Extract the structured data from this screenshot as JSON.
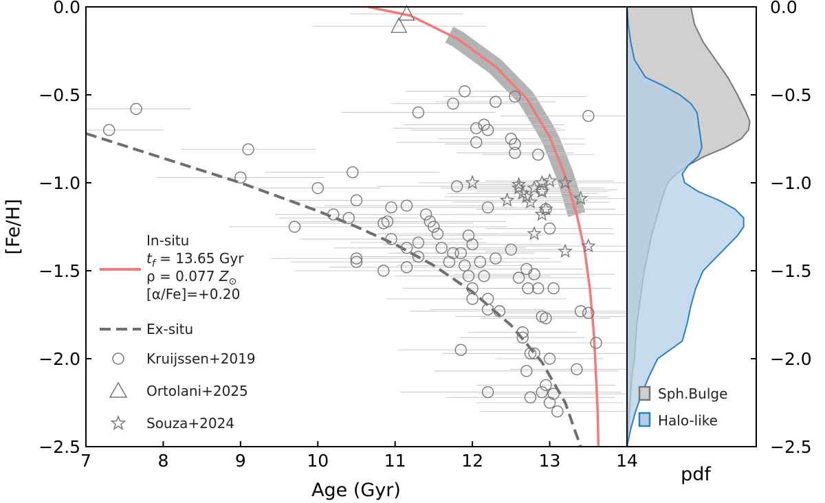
{
  "chart_data": [
    {
      "type": "scatter",
      "xlabel": "Age (Gyr)",
      "ylabel": "[Fe/H]",
      "xlim": [
        7,
        14
      ],
      "ylim": [
        -2.5,
        0.0
      ],
      "xticks": [
        "7",
        "8",
        "9",
        "10",
        "11",
        "12",
        "13",
        "14"
      ],
      "yticks": [
        "0.0",
        "−0.5",
        "−1.0",
        "−1.5",
        "−2.0",
        "−2.5"
      ],
      "models": {
        "in_situ": {
          "label_lines": [
            "In-situ",
            "t_f = 13.65 Gyr",
            "ρ = 0.077 Z⊙",
            "[α/Fe]=+0.20"
          ],
          "label_title": "In-situ",
          "label_tf_symbol": "t",
          "label_tf_sub": "f",
          "label_tf_value": " = 13.65 Gyr",
          "label_rho_prefix": "ρ = 0.077 ",
          "label_rho_symbol": "Z",
          "label_rho_sub": "⊙",
          "label_alpha": "[α/Fe]=+0.20",
          "color": "#f47a7a",
          "t_f": 13.65,
          "curve": [
            [
              10.65,
              0.0
            ],
            [
              11.2,
              -0.05
            ],
            [
              11.8,
              -0.18
            ],
            [
              12.3,
              -0.34
            ],
            [
              12.7,
              -0.52
            ],
            [
              13.0,
              -0.74
            ],
            [
              13.2,
              -0.96
            ],
            [
              13.35,
              -1.18
            ],
            [
              13.45,
              -1.38
            ],
            [
              13.52,
              -1.6
            ],
            [
              13.57,
              -1.85
            ],
            [
              13.6,
              -2.1
            ],
            [
              13.62,
              -2.3
            ],
            [
              13.63,
              -2.5
            ]
          ],
          "band_x_range": [
            11.7,
            13.35
          ],
          "band_color": "#b3b3b3"
        },
        "ex_situ": {
          "label": "Ex-situ",
          "color": "#6e6e6e",
          "curve": [
            [
              7.0,
              -0.72
            ],
            [
              7.5,
              -0.79
            ],
            [
              8.0,
              -0.86
            ],
            [
              8.5,
              -0.93
            ],
            [
              9.0,
              -1.0
            ],
            [
              9.5,
              -1.08
            ],
            [
              10.0,
              -1.16
            ],
            [
              10.5,
              -1.25
            ],
            [
              11.0,
              -1.35
            ],
            [
              11.5,
              -1.47
            ],
            [
              12.0,
              -1.62
            ],
            [
              12.5,
              -1.81
            ],
            [
              12.9,
              -2.02
            ],
            [
              13.2,
              -2.25
            ],
            [
              13.4,
              -2.5
            ]
          ]
        }
      },
      "series": [
        {
          "name": "Kruijssen+2019",
          "marker": "circle",
          "points": [
            [
              7.3,
              -0.7
            ],
            [
              7.65,
              -0.58
            ],
            [
              9.0,
              -0.97
            ],
            [
              9.1,
              -0.81
            ],
            [
              9.7,
              -1.25
            ],
            [
              10.0,
              -1.03
            ],
            [
              10.2,
              -1.18
            ],
            [
              10.4,
              -1.2
            ],
            [
              10.45,
              -0.94
            ],
            [
              10.5,
              -1.1
            ],
            [
              10.5,
              -1.43
            ],
            [
              10.5,
              -1.45
            ],
            [
              10.85,
              -1.23
            ],
            [
              10.9,
              -1.22
            ],
            [
              10.85,
              -1.5
            ],
            [
              10.95,
              -1.32
            ],
            [
              10.95,
              -1.14
            ],
            [
              11.15,
              -1.48
            ],
            [
              11.15,
              -1.13
            ],
            [
              11.15,
              -1.37
            ],
            [
              11.3,
              -1.34
            ],
            [
              11.3,
              -1.42
            ],
            [
              11.3,
              -0.6
            ],
            [
              11.4,
              -1.18
            ],
            [
              11.45,
              -1.22
            ],
            [
              11.5,
              -1.25
            ],
            [
              11.55,
              -1.29
            ],
            [
              11.6,
              -1.37
            ],
            [
              11.7,
              -1.45
            ],
            [
              11.75,
              -1.4
            ],
            [
              11.75,
              -0.55
            ],
            [
              11.8,
              -1.02
            ],
            [
              11.85,
              -1.4
            ],
            [
              11.85,
              -1.95
            ],
            [
              11.9,
              -0.48
            ],
            [
              11.9,
              -1.47
            ],
            [
              11.95,
              -1.53
            ],
            [
              11.95,
              -1.3
            ],
            [
              12.0,
              -1.66
            ],
            [
              12.0,
              -1.35
            ],
            [
              12.0,
              -1.6
            ],
            [
              12.05,
              -0.69
            ],
            [
              12.05,
              -0.77
            ],
            [
              12.1,
              -1.45
            ],
            [
              12.15,
              -0.67
            ],
            [
              12.15,
              -1.53
            ],
            [
              12.2,
              -0.7
            ],
            [
              12.2,
              -1.14
            ],
            [
              12.2,
              -1.66
            ],
            [
              12.2,
              -1.72
            ],
            [
              12.2,
              -2.19
            ],
            [
              12.3,
              -1.43
            ],
            [
              12.3,
              -0.54
            ],
            [
              12.35,
              -1.73
            ],
            [
              12.5,
              -0.75
            ],
            [
              12.5,
              -1.38
            ],
            [
              12.55,
              -0.83
            ],
            [
              12.55,
              -0.78
            ],
            [
              12.55,
              -0.51
            ],
            [
              12.6,
              -1.54
            ],
            [
              12.65,
              -1.88
            ],
            [
              12.65,
              -1.85
            ],
            [
              12.7,
              -2.07
            ],
            [
              12.7,
              -1.49
            ],
            [
              12.72,
              -1.6
            ],
            [
              12.75,
              -1.97
            ],
            [
              12.75,
              -2.22
            ],
            [
              12.8,
              -1.52
            ],
            [
              12.8,
              -1.97
            ],
            [
              12.85,
              -0.84
            ],
            [
              12.85,
              -1.6
            ],
            [
              12.9,
              -1.04
            ],
            [
              12.9,
              -1.76
            ],
            [
              12.9,
              -2.19
            ],
            [
              12.95,
              -1.15
            ],
            [
              12.95,
              -1.77
            ],
            [
              12.95,
              -2.15
            ],
            [
              13.0,
              -1.26
            ],
            [
              13.0,
              -2.0
            ],
            [
              13.0,
              -2.25
            ],
            [
              13.05,
              -1.6
            ],
            [
              13.05,
              -2.2
            ],
            [
              13.1,
              -2.3
            ],
            [
              13.35,
              -2.06
            ],
            [
              13.4,
              -1.73
            ],
            [
              13.5,
              -1.74
            ],
            [
              13.5,
              -0.62
            ],
            [
              13.6,
              -1.91
            ]
          ]
        },
        {
          "name": "Ortolani+2025",
          "marker": "triangle",
          "points": [
            [
              11.05,
              -0.11
            ],
            [
              11.15,
              -0.04
            ]
          ]
        },
        {
          "name": "Souza+2024",
          "marker": "star",
          "points": [
            [
              12.0,
              -1.0
            ],
            [
              12.45,
              -1.1
            ],
            [
              12.6,
              -1.03
            ],
            [
              12.6,
              -1.01
            ],
            [
              12.65,
              -1.06
            ],
            [
              12.7,
              -1.08
            ],
            [
              12.75,
              -1.11
            ],
            [
              12.8,
              -1.03
            ],
            [
              12.8,
              -1.29
            ],
            [
              12.9,
              -1.05
            ],
            [
              12.9,
              -1.0
            ],
            [
              12.9,
              -1.18
            ],
            [
              12.95,
              -1.15
            ],
            [
              13.0,
              -0.99
            ],
            [
              13.2,
              -1.0
            ],
            [
              13.2,
              -1.39
            ],
            [
              13.4,
              -1.09
            ],
            [
              13.5,
              -1.36
            ]
          ]
        }
      ]
    },
    {
      "type": "area",
      "xlabel": "pdf",
      "ylim": [
        -2.5,
        0.0
      ],
      "yticks": [
        "0.0",
        "−0.5",
        "−1.0",
        "−1.5",
        "−2.0",
        "−2.5"
      ],
      "series": [
        {
          "name": "Sph.Bulge",
          "color": "#777777",
          "fill": "#d0d0d0",
          "density": [
            [
              0.0,
              0.52
            ],
            [
              -0.1,
              0.55
            ],
            [
              -0.2,
              0.62
            ],
            [
              -0.3,
              0.72
            ],
            [
              -0.4,
              0.82
            ],
            [
              -0.5,
              0.9
            ],
            [
              -0.6,
              0.97
            ],
            [
              -0.65,
              1.0
            ],
            [
              -0.7,
              0.99
            ],
            [
              -0.75,
              0.93
            ],
            [
              -0.8,
              0.8
            ],
            [
              -0.85,
              0.63
            ],
            [
              -0.9,
              0.5
            ],
            [
              -0.95,
              0.4
            ],
            [
              -1.0,
              0.33
            ],
            [
              -1.1,
              0.28
            ],
            [
              -1.2,
              0.24
            ],
            [
              -1.3,
              0.2
            ],
            [
              -1.4,
              0.17
            ],
            [
              -1.5,
              0.14
            ],
            [
              -1.6,
              0.12
            ],
            [
              -1.7,
              0.1
            ],
            [
              -1.8,
              0.08
            ],
            [
              -1.9,
              0.07
            ],
            [
              -2.0,
              0.06
            ],
            [
              -2.1,
              0.04
            ],
            [
              -2.2,
              0.03
            ],
            [
              -2.3,
              0.02
            ],
            [
              -2.4,
              0.01
            ],
            [
              -2.5,
              0.0
            ]
          ]
        },
        {
          "name": "Halo-like",
          "color": "#2a7fbf",
          "fill": "#b3cfe8",
          "density": [
            [
              0.0,
              0.0
            ],
            [
              -0.1,
              0.01
            ],
            [
              -0.2,
              0.03
            ],
            [
              -0.3,
              0.06
            ],
            [
              -0.4,
              0.15
            ],
            [
              -0.45,
              0.3
            ],
            [
              -0.5,
              0.43
            ],
            [
              -0.55,
              0.52
            ],
            [
              -0.6,
              0.57
            ],
            [
              -0.7,
              0.59
            ],
            [
              -0.8,
              0.61
            ],
            [
              -0.85,
              0.58
            ],
            [
              -0.9,
              0.5
            ],
            [
              -0.95,
              0.45
            ],
            [
              -1.0,
              0.47
            ],
            [
              -1.05,
              0.58
            ],
            [
              -1.1,
              0.75
            ],
            [
              -1.15,
              0.88
            ],
            [
              -1.2,
              0.95
            ],
            [
              -1.25,
              0.95
            ],
            [
              -1.3,
              0.9
            ],
            [
              -1.4,
              0.76
            ],
            [
              -1.5,
              0.62
            ],
            [
              -1.6,
              0.56
            ],
            [
              -1.7,
              0.52
            ],
            [
              -1.8,
              0.49
            ],
            [
              -1.9,
              0.45
            ],
            [
              -1.95,
              0.35
            ],
            [
              -2.0,
              0.25
            ],
            [
              -2.1,
              0.18
            ],
            [
              -2.2,
              0.12
            ],
            [
              -2.3,
              0.07
            ],
            [
              -2.4,
              0.03
            ],
            [
              -2.5,
              0.0
            ]
          ]
        }
      ]
    }
  ]
}
